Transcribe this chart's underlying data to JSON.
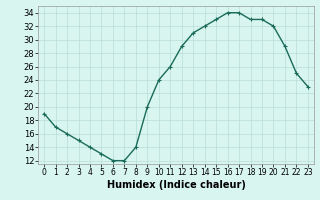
{
  "x": [
    0,
    1,
    2,
    3,
    4,
    5,
    6,
    7,
    8,
    9,
    10,
    11,
    12,
    13,
    14,
    15,
    16,
    17,
    18,
    19,
    20,
    21,
    22,
    23
  ],
  "y": [
    19,
    17,
    16,
    15,
    14,
    13,
    12,
    12,
    14,
    20,
    24,
    26,
    29,
    31,
    32,
    33,
    34,
    34,
    33,
    33,
    32,
    29,
    25,
    23
  ],
  "line_color": "#1a6b5a",
  "marker": "+",
  "marker_size": 3,
  "xlabel": "Humidex (Indice chaleur)",
  "xlim": [
    -0.5,
    23.5
  ],
  "ylim": [
    11.5,
    35
  ],
  "yticks": [
    12,
    14,
    16,
    18,
    20,
    22,
    24,
    26,
    28,
    30,
    32,
    34
  ],
  "xticks": [
    0,
    1,
    2,
    3,
    4,
    5,
    6,
    7,
    8,
    9,
    10,
    11,
    12,
    13,
    14,
    15,
    16,
    17,
    18,
    19,
    20,
    21,
    22,
    23
  ],
  "bg_color": "#d8f5f0",
  "grid_color": "#b8ddd8",
  "x_tick_fontsize": 5.5,
  "y_tick_fontsize": 6.0,
  "xlabel_fontsize": 7.0,
  "linewidth": 1.0
}
